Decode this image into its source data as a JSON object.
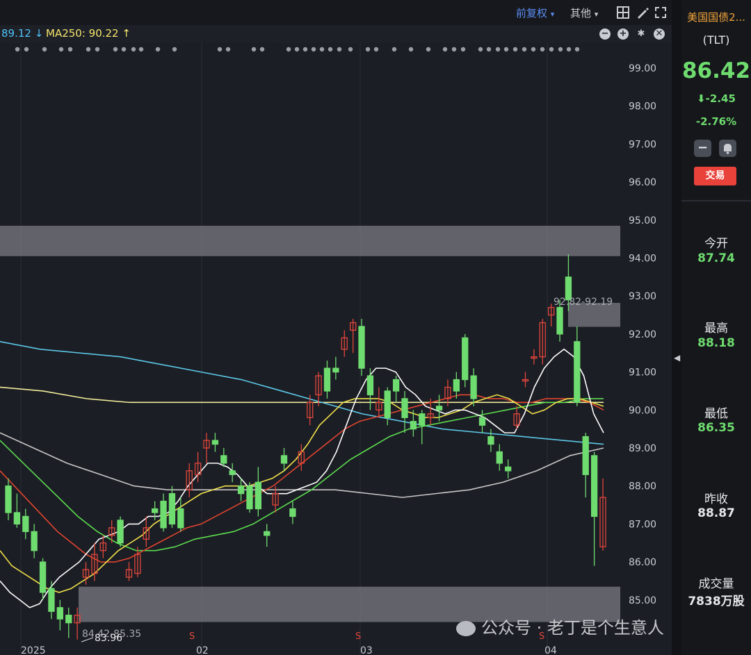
{
  "toolbar": {
    "fuquan_label": "前复权",
    "other_label": "其他"
  },
  "ma_bar": {
    "last_label": "89.12 ↓",
    "ma250_label": "MA250: 90.22 ↑",
    "minus": "−",
    "plus": "+",
    "gear": "✱",
    "close": "✕"
  },
  "sidebar": {
    "name": "美国国债2...",
    "ticker": "(TLT)",
    "price": "86.42",
    "change": "-2.45",
    "change_pct": "-2.76%",
    "trade_button": "交易",
    "stats": [
      {
        "label": "今开",
        "value": "87.74"
      },
      {
        "label": "最高",
        "value": "88.18"
      },
      {
        "label": "最低",
        "value": "86.35"
      },
      {
        "label": "昨收",
        "value": "88.87"
      },
      {
        "label": "成交量",
        "value": "7838万股"
      }
    ]
  },
  "watermark": "公众号 · 老丁是个生意人",
  "colors": {
    "up": "#e2473c",
    "down": "#6fdc6f",
    "zone": "#6e7077",
    "ma5": "#ffffff",
    "ma10": "#f0e14a",
    "ma20": "#e0452f",
    "ma60": "#5bdc4f",
    "ma120": "#c8c8c8",
    "ma200": "#5bc8e8",
    "ma250": "#f2ee9a"
  },
  "chart_data": {
    "type": "candlestick",
    "y_ticks": [
      "99.00",
      "98.00",
      "97.00",
      "96.00",
      "95.00",
      "94.00",
      "93.00",
      "92.00",
      "91.00",
      "90.00",
      "89.00",
      "88.00",
      "87.00",
      "86.00",
      "85.00"
    ],
    "x_labels": [
      "2025",
      "02",
      "03",
      "04"
    ],
    "annotations": {
      "zone_high_label": "92.82-92.19",
      "zone_low_label": "84.42-85.35",
      "low_label": "83.96",
      "signal_label": "S"
    },
    "zones": [
      [
        94.05,
        94.85
      ],
      [
        92.19,
        92.82
      ],
      [
        84.42,
        85.35
      ]
    ],
    "ylim": [
      83.6,
      99.5
    ],
    "candles": [
      [
        88.0,
        87.3,
        88.2,
        87.1
      ],
      [
        87.3,
        87.0,
        87.8,
        86.9
      ],
      [
        87.2,
        86.8,
        87.4,
        86.6
      ],
      [
        86.8,
        86.3,
        87.0,
        86.1
      ],
      [
        86.0,
        85.2,
        86.1,
        85.0
      ],
      [
        85.3,
        84.7,
        85.5,
        84.5
      ],
      [
        84.8,
        84.5,
        85.0,
        84.2
      ],
      [
        84.6,
        84.4,
        84.8,
        84.0
      ],
      [
        84.4,
        84.6,
        84.8,
        83.96
      ],
      [
        85.6,
        85.8,
        86.0,
        85.4
      ],
      [
        85.7,
        86.2,
        86.5,
        85.5
      ],
      [
        86.3,
        86.5,
        86.7,
        86.1
      ],
      [
        86.7,
        86.9,
        87.1,
        86.5
      ],
      [
        87.1,
        86.5,
        87.2,
        86.4
      ],
      [
        85.6,
        85.8,
        86.0,
        85.5
      ],
      [
        85.7,
        86.2,
        86.4,
        85.6
      ],
      [
        86.6,
        86.9,
        87.2,
        86.4
      ],
      [
        87.4,
        87.3,
        87.6,
        87.1
      ],
      [
        87.6,
        86.9,
        87.8,
        86.8
      ],
      [
        87.8,
        87.0,
        88.0,
        86.9
      ],
      [
        87.4,
        86.9,
        87.7,
        86.8
      ],
      [
        87.9,
        88.4,
        88.6,
        87.7
      ],
      [
        88.3,
        88.6,
        88.9,
        88.1
      ],
      [
        89.0,
        89.2,
        89.4,
        88.6
      ],
      [
        89.2,
        89.1,
        89.4,
        88.9
      ],
      [
        88.8,
        88.6,
        89.0,
        88.5
      ],
      [
        88.4,
        88.3,
        88.6,
        88.1
      ],
      [
        88.0,
        87.8,
        88.2,
        87.6
      ],
      [
        88.0,
        87.4,
        88.1,
        87.3
      ],
      [
        88.1,
        87.4,
        88.5,
        87.2
      ],
      [
        86.8,
        86.7,
        87.0,
        86.4
      ],
      [
        87.5,
        87.8,
        88.0,
        87.3
      ],
      [
        88.8,
        88.6,
        89.0,
        88.4
      ],
      [
        87.4,
        87.2,
        87.6,
        87.0
      ],
      [
        88.6,
        88.9,
        89.1,
        88.4
      ],
      [
        89.8,
        90.2,
        90.4,
        89.6
      ],
      [
        90.4,
        90.9,
        91.0,
        90.1
      ],
      [
        91.1,
        90.5,
        91.3,
        90.3
      ],
      [
        91.1,
        91.0,
        91.4,
        90.8
      ],
      [
        91.6,
        91.9,
        92.1,
        91.4
      ],
      [
        92.1,
        92.3,
        92.4,
        91.5
      ],
      [
        92.2,
        91.1,
        92.4,
        90.9
      ],
      [
        90.9,
        90.4,
        91.1,
        90.0
      ],
      [
        90.0,
        90.2,
        90.6,
        89.8
      ],
      [
        90.5,
        89.8,
        90.6,
        89.6
      ],
      [
        90.8,
        90.5,
        90.9,
        90.2
      ],
      [
        90.3,
        89.8,
        90.5,
        89.4
      ],
      [
        89.7,
        89.5,
        90.0,
        89.3
      ],
      [
        89.9,
        89.6,
        90.0,
        89.1
      ],
      [
        89.8,
        89.9,
        90.3,
        89.6
      ],
      [
        90.1,
        90.0,
        90.4,
        89.7
      ],
      [
        90.3,
        90.6,
        90.8,
        90.1
      ],
      [
        90.8,
        90.5,
        91.0,
        90.3
      ],
      [
        91.9,
        90.8,
        92.0,
        90.6
      ],
      [
        90.9,
        90.3,
        91.1,
        90.1
      ],
      [
        89.8,
        89.6,
        90.0,
        89.4
      ],
      [
        89.3,
        89.1,
        89.5,
        88.9
      ],
      [
        88.9,
        88.6,
        89.1,
        88.4
      ],
      [
        88.5,
        88.4,
        88.7,
        88.2
      ],
      [
        89.6,
        89.9,
        90.1,
        89.5
      ],
      [
        90.8,
        90.8,
        91.0,
        90.6
      ],
      [
        91.4,
        91.4,
        91.6,
        91.2
      ],
      [
        91.4,
        92.3,
        92.4,
        91.2
      ],
      [
        92.5,
        92.7,
        92.8,
        92.2
      ],
      [
        92.7,
        92.0,
        92.9,
        91.8
      ],
      [
        93.5,
        92.9,
        94.1,
        92.6
      ],
      [
        91.8,
        90.2,
        92.2,
        90.1
      ],
      [
        89.3,
        88.3,
        89.4,
        87.7
      ],
      [
        88.8,
        87.2,
        88.9,
        85.9
      ],
      [
        86.4,
        87.7,
        88.2,
        86.3
      ]
    ],
    "ma5": [
      85.5,
      85.2,
      85.0,
      84.8,
      84.9,
      85.3,
      85.6,
      85.8,
      86.0,
      86.3,
      86.6,
      86.7,
      86.8,
      87.0,
      87.0,
      87.2,
      87.2,
      87.3,
      87.6,
      88.0,
      88.3,
      88.6,
      88.6,
      88.5,
      88.3,
      88.0,
      88.0,
      87.8,
      87.8,
      87.8,
      87.9,
      88.0,
      88.1,
      88.4,
      88.9,
      89.6,
      90.3,
      90.8,
      91.1,
      91.1,
      91.0,
      90.6,
      90.4,
      90.1,
      90.0,
      89.9,
      90.0,
      90.0,
      89.9,
      89.8,
      89.6,
      89.4,
      89.4,
      89.9,
      90.6,
      91.1,
      91.4,
      91.6,
      91.4,
      90.9,
      89.9,
      89.4
    ],
    "ma10": [
      86.3,
      85.9,
      85.7,
      85.5,
      85.3,
      85.2,
      85.3,
      85.5,
      85.7,
      86.0,
      86.3,
      86.5,
      86.7,
      87.0,
      87.2,
      87.4,
      87.6,
      87.8,
      87.9,
      88.0,
      88.0,
      88.0,
      88.1,
      88.2,
      88.4,
      88.7,
      89.1,
      89.6,
      89.9,
      90.2,
      90.3,
      90.3,
      90.3,
      90.2,
      90.0,
      89.9,
      89.8,
      89.8,
      89.9,
      90.0,
      90.2,
      90.3,
      90.4,
      90.3,
      90.1,
      89.9,
      90.0,
      90.2,
      90.3,
      90.3,
      90.2,
      90.1
    ],
    "ma20": [
      88.4,
      88.0,
      87.6,
      87.2,
      86.8,
      86.5,
      86.2,
      86.0,
      86.0,
      86.1,
      86.3,
      86.5,
      86.7,
      86.9,
      87.0,
      87.2,
      87.4,
      87.6,
      87.8,
      88.0,
      88.3,
      88.6,
      88.9,
      89.2,
      89.5,
      89.7,
      89.8,
      89.9,
      90.0,
      90.1,
      90.2,
      90.3,
      90.4,
      90.4,
      90.3,
      90.3,
      90.2,
      90.2,
      90.3,
      90.3,
      90.3,
      90.2,
      90.0
    ],
    "ma60": [
      89.2,
      88.7,
      88.2,
      87.7,
      87.2,
      86.8,
      86.5,
      86.3,
      86.3,
      86.4,
      86.6,
      86.7,
      86.8,
      87.0,
      87.3,
      87.6,
      87.9,
      88.3,
      88.7,
      89.0,
      89.3,
      89.5,
      89.6,
      89.7,
      89.8,
      89.9,
      90.0,
      90.1,
      90.2,
      90.2,
      90.3,
      90.3
    ],
    "ma120": [
      89.4,
      89.0,
      88.6,
      88.3,
      88.0,
      87.9,
      87.9,
      87.9,
      87.9,
      87.9,
      87.9,
      87.8,
      87.7,
      87.8,
      87.9,
      88.1,
      88.4,
      88.8,
      89.0
    ],
    "ma200": [
      91.8,
      91.6,
      91.5,
      91.4,
      91.2,
      91.0,
      90.8,
      90.5,
      90.2,
      89.9,
      89.7,
      89.5,
      89.4,
      89.3,
      89.2,
      89.1
    ],
    "ma250": [
      90.6,
      90.5,
      90.3,
      90.2,
      90.2,
      90.2,
      90.2,
      90.2,
      90.2,
      90.2,
      90.2,
      90.2,
      90.2,
      90.2,
      90.2
    ]
  }
}
